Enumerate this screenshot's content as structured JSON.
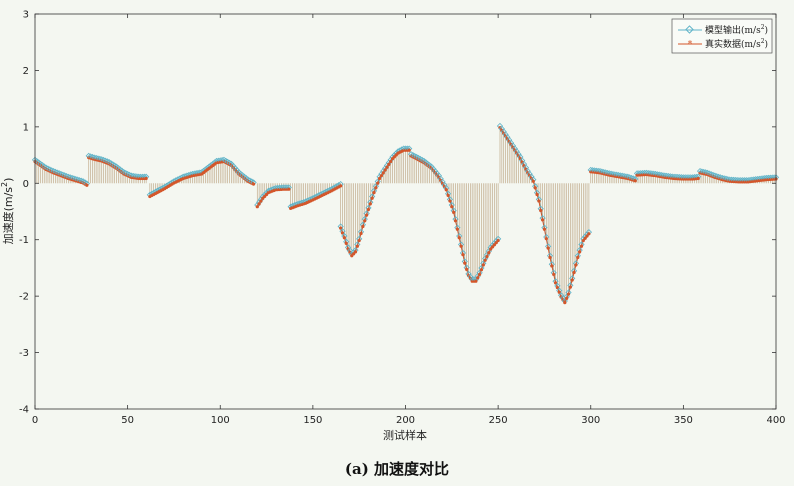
{
  "figure": {
    "caption": "(a) 加速度对比"
  },
  "chart_data": {
    "type": "line",
    "title": "",
    "xlabel": "测试样本",
    "ylabel": "加速度(m/s2)",
    "ylabel_parts": {
      "main": "加速度(m/s",
      "sup": "2",
      "close": ")"
    },
    "xlim": [
      0,
      400
    ],
    "ylim": [
      -4,
      3
    ],
    "xticks": [
      0,
      50,
      100,
      150,
      200,
      250,
      300,
      350,
      400
    ],
    "yticks": [
      -4,
      -3,
      -2,
      -1,
      0,
      1,
      2,
      3
    ],
    "grid": false,
    "legend_position": "top-right",
    "stem_color": "#c2ad8e",
    "series": [
      {
        "name": "模型输出(m/s2)",
        "label_main": "模型输出(m/s",
        "label_sup": "2",
        "label_close": ")",
        "color": "#5fb3c8",
        "marker": "diamond"
      },
      {
        "name": "真实数据(m/s2)",
        "label_main": "真实数据(m/s",
        "label_sup": "2",
        "label_close": ")",
        "color": "#d4562a",
        "marker": "star"
      }
    ],
    "segments": [
      {
        "x": [
          0,
          3,
          6,
          10,
          14,
          18,
          22,
          26,
          28
        ],
        "y": [
          0.4,
          0.33,
          0.26,
          0.2,
          0.15,
          0.1,
          0.06,
          0.02,
          -0.02
        ]
      },
      {
        "x": [
          29,
          32,
          36,
          40,
          44,
          48,
          52,
          56,
          60
        ],
        "y": [
          0.47,
          0.44,
          0.41,
          0.36,
          0.28,
          0.18,
          0.12,
          0.1,
          0.1
        ]
      },
      {
        "x": [
          62,
          66,
          70,
          75,
          80,
          85,
          90,
          94,
          98,
          102,
          106,
          110,
          115,
          118
        ],
        "y": [
          -0.22,
          -0.15,
          -0.08,
          0.02,
          0.1,
          0.15,
          0.18,
          0.28,
          0.38,
          0.4,
          0.33,
          0.18,
          0.05,
          0.0
        ]
      },
      {
        "x": [
          120,
          123,
          126,
          130,
          134,
          137
        ],
        "y": [
          -0.4,
          -0.25,
          -0.15,
          -0.1,
          -0.09,
          -0.09
        ]
      },
      {
        "x": [
          138,
          142,
          146,
          150,
          155,
          160,
          165
        ],
        "y": [
          -0.43,
          -0.38,
          -0.34,
          -0.28,
          -0.2,
          -0.12,
          -0.03
        ]
      },
      {
        "x": [
          165,
          167,
          169,
          171,
          173,
          175,
          177,
          180,
          183,
          186,
          190,
          193,
          196,
          199,
          202
        ],
        "y": [
          -0.78,
          -0.95,
          -1.15,
          -1.27,
          -1.2,
          -1.0,
          -0.75,
          -0.45,
          -0.15,
          0.1,
          0.3,
          0.45,
          0.55,
          0.6,
          0.6
        ]
      },
      {
        "x": [
          203,
          206,
          210,
          214,
          218,
          222,
          226,
          229,
          232,
          234,
          236,
          238,
          240,
          243,
          246,
          250
        ],
        "y": [
          0.5,
          0.45,
          0.38,
          0.28,
          0.12,
          -0.1,
          -0.5,
          -0.95,
          -1.4,
          -1.62,
          -1.72,
          -1.72,
          -1.6,
          -1.35,
          -1.15,
          -1.0
        ]
      },
      {
        "x": [
          251,
          254,
          258,
          262,
          266,
          269,
          272,
          275,
          278,
          281,
          284,
          286,
          288,
          290,
          293,
          296,
          299
        ],
        "y": [
          1.0,
          0.85,
          0.65,
          0.45,
          0.2,
          0.05,
          -0.3,
          -0.8,
          -1.3,
          -1.75,
          -2.0,
          -2.1,
          -1.95,
          -1.7,
          -1.3,
          -1.0,
          -0.88
        ]
      },
      {
        "x": [
          300,
          305,
          310,
          315,
          320,
          324
        ],
        "y": [
          0.22,
          0.2,
          0.16,
          0.13,
          0.1,
          0.06
        ]
      },
      {
        "x": [
          325,
          330,
          335,
          340,
          345,
          350,
          355,
          358
        ],
        "y": [
          0.16,
          0.17,
          0.15,
          0.12,
          0.1,
          0.09,
          0.09,
          0.1
        ]
      },
      {
        "x": [
          359,
          363,
          367,
          371,
          375,
          380,
          385,
          390,
          395,
          400
        ],
        "y": [
          0.2,
          0.17,
          0.12,
          0.08,
          0.05,
          0.04,
          0.04,
          0.06,
          0.08,
          0.09
        ]
      }
    ]
  }
}
